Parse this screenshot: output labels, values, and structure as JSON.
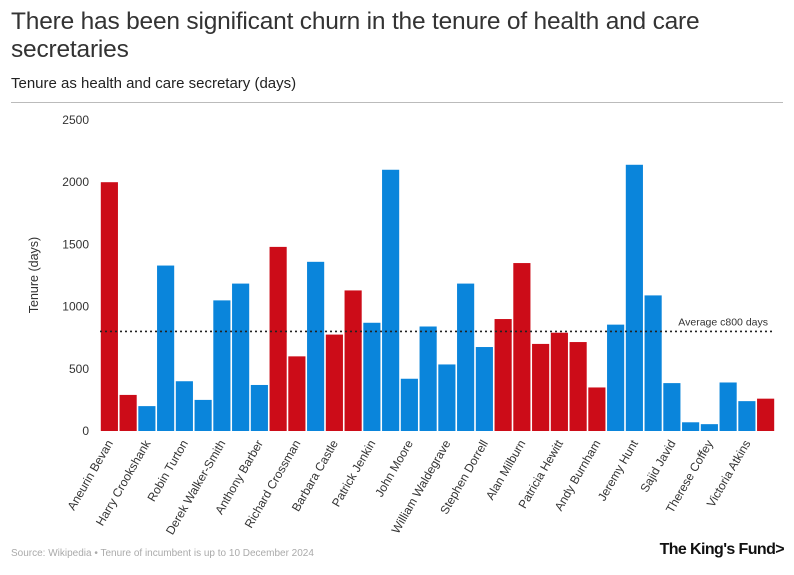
{
  "title": "There has been significant churn in the tenure of health and care secretaries",
  "subtitle": "Tenure as health and care secretary (days)",
  "footer": {
    "source": "Source: Wikipedia • Tenure of incumbent is up to 10 December 2024",
    "logo": "The King's Fund>"
  },
  "colors": {
    "labour": "#cc0c18",
    "conservative": "#0a85db",
    "reference": "#222222"
  },
  "chart_data": {
    "type": "bar",
    "ylabel": "Tenure (days)",
    "xlabel": "",
    "ylim": [
      0,
      2500
    ],
    "yticks": [
      0,
      500,
      1000,
      1500,
      2000,
      2500
    ],
    "reference_line": {
      "value": 800,
      "label": "Average c800 days"
    },
    "labeled_names": [
      "Aneurin Bevan",
      "Harry Crookshank",
      "Robin Turton",
      "Derek Walker-Smith",
      "Anthony Barber",
      "Richard Crossman",
      "Barbara Castle",
      "Patrick Jenkin",
      "John Moore",
      "William Waldegrave",
      "Stephen Dorrell",
      "Alan Milburn",
      "Patricia Hewitt",
      "Andy Burnham",
      "Jeremy Hunt",
      "Sajid Javid",
      "Therese Coffey",
      "Victoria Atkins"
    ],
    "bars": [
      {
        "name": "Aneurin Bevan",
        "value": 2000,
        "party": "labour"
      },
      {
        "name": "",
        "value": 290,
        "party": "labour"
      },
      {
        "name": "Harry Crookshank",
        "value": 200,
        "party": "conservative"
      },
      {
        "name": "",
        "value": 1330,
        "party": "conservative"
      },
      {
        "name": "Robin Turton",
        "value": 400,
        "party": "conservative"
      },
      {
        "name": "",
        "value": 250,
        "party": "conservative"
      },
      {
        "name": "Derek Walker-Smith",
        "value": 1050,
        "party": "conservative"
      },
      {
        "name": "",
        "value": 1185,
        "party": "conservative"
      },
      {
        "name": "Anthony Barber",
        "value": 370,
        "party": "conservative"
      },
      {
        "name": "",
        "value": 1480,
        "party": "labour"
      },
      {
        "name": "Richard Crossman",
        "value": 600,
        "party": "labour"
      },
      {
        "name": "",
        "value": 1360,
        "party": "conservative"
      },
      {
        "name": "Barbara Castle",
        "value": 775,
        "party": "labour"
      },
      {
        "name": "",
        "value": 1130,
        "party": "labour"
      },
      {
        "name": "Patrick Jenkin",
        "value": 870,
        "party": "conservative"
      },
      {
        "name": "",
        "value": 2100,
        "party": "conservative"
      },
      {
        "name": "John Moore",
        "value": 420,
        "party": "conservative"
      },
      {
        "name": "",
        "value": 840,
        "party": "conservative"
      },
      {
        "name": "William Waldegrave",
        "value": 535,
        "party": "conservative"
      },
      {
        "name": "",
        "value": 1185,
        "party": "conservative"
      },
      {
        "name": "Stephen Dorrell",
        "value": 675,
        "party": "conservative"
      },
      {
        "name": "",
        "value": 900,
        "party": "labour"
      },
      {
        "name": "Alan Milburn",
        "value": 1350,
        "party": "labour"
      },
      {
        "name": "",
        "value": 700,
        "party": "labour"
      },
      {
        "name": "Patricia Hewitt",
        "value": 790,
        "party": "labour"
      },
      {
        "name": "",
        "value": 715,
        "party": "labour"
      },
      {
        "name": "Andy Burnham",
        "value": 350,
        "party": "labour"
      },
      {
        "name": "",
        "value": 855,
        "party": "conservative"
      },
      {
        "name": "Jeremy Hunt",
        "value": 2140,
        "party": "conservative"
      },
      {
        "name": "",
        "value": 1090,
        "party": "conservative"
      },
      {
        "name": "Sajid Javid",
        "value": 385,
        "party": "conservative"
      },
      {
        "name": "",
        "value": 70,
        "party": "conservative"
      },
      {
        "name": "Therese Coffey",
        "value": 55,
        "party": "conservative"
      },
      {
        "name": "",
        "value": 390,
        "party": "conservative"
      },
      {
        "name": "Victoria Atkins",
        "value": 240,
        "party": "conservative"
      },
      {
        "name": "",
        "value": 260,
        "party": "labour"
      }
    ]
  }
}
